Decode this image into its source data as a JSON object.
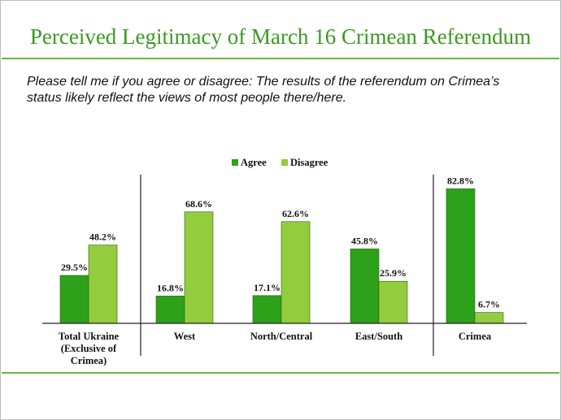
{
  "header": {
    "title": "Perceived Legitimacy of March 16 Crimean Referendum",
    "subtitle": "Please tell me if you agree or disagree: The results of the referendum on Crimea’s status likely reflect the views of most people there/here."
  },
  "colors": {
    "title": "#3a9a1f",
    "rule": "#6ab83a",
    "agree": "#2ea11b",
    "disagree": "#93cc3c"
  },
  "chart_data": {
    "type": "bar",
    "categories": [
      [
        "Total Ukraine",
        "(Exclusive of",
        "Crimea)"
      ],
      [
        "West"
      ],
      [
        "North/Central"
      ],
      [
        "East/South"
      ],
      [
        "Crimea"
      ]
    ],
    "series": [
      {
        "name": "Agree",
        "values": [
          29.5,
          16.8,
          17.1,
          45.8,
          82.8
        ],
        "labels": [
          "29.5%",
          "16.8%",
          "17.1%",
          "45.8%",
          "82.8%"
        ]
      },
      {
        "name": "Disagree",
        "values": [
          48.2,
          68.6,
          62.6,
          25.9,
          6.7
        ],
        "labels": [
          "48.2%",
          "68.6%",
          "62.6%",
          "25.9%",
          "6.7%"
        ]
      }
    ],
    "ylim": [
      0,
      100
    ],
    "legend": "top-center",
    "grid": false,
    "title": "",
    "xlabel": "",
    "ylabel": ""
  }
}
